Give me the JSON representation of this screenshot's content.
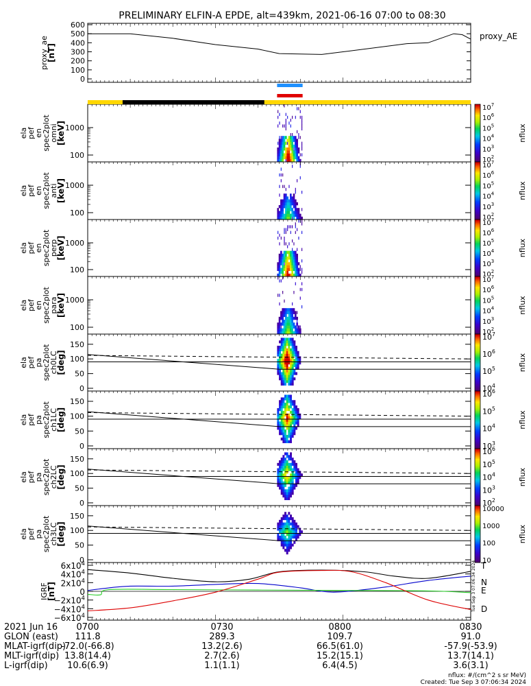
{
  "title": "PRELIMINARY ELFIN-A EPDE, alt=439km, 2021-06-16 07:00 to 08:30",
  "time_axis": {
    "ticks": [
      "0700",
      "0730",
      "0800",
      "0830"
    ],
    "tick_values_min": [
      0,
      30,
      60,
      90
    ]
  },
  "colors": {
    "frame": "#000000",
    "sunlight": "#FFD700",
    "shadow": "#000000",
    "science_bar_blue": "#1E90FF",
    "science_bar_red": "#E00000",
    "igrf_T": "#000000",
    "igrf_N": "#0000CC",
    "igrf_E": "#22CC22",
    "igrf_D": "#DD0000"
  },
  "panels": [
    {
      "ylabel": [
        "proxy_ae",
        "[nT]"
      ],
      "right_label": "proxy_AE"
    },
    {
      "ylabel": [
        "ela",
        "pef",
        "en",
        "spec2plot",
        "omni",
        "[keV]"
      ],
      "cbar_label": "nflux"
    },
    {
      "ylabel": [
        "ela",
        "pef",
        "en",
        "spec2plot",
        "anti",
        "[keV]"
      ],
      "cbar_label": "nflux"
    },
    {
      "ylabel": [
        "ela",
        "pef",
        "en",
        "spec2plot",
        "perp",
        "[keV]"
      ],
      "cbar_label": "nflux"
    },
    {
      "ylabel": [
        "ela",
        "pef",
        "en",
        "spec2plot",
        "para",
        "[keV]"
      ],
      "cbar_label": "nflux"
    },
    {
      "ylabel": [
        "ela",
        "pef",
        "pa",
        "spec2plot",
        "ch0LC",
        "[deg]"
      ],
      "cbar_label": "nflux"
    },
    {
      "ylabel": [
        "ela",
        "pef",
        "pa",
        "spec2plot",
        "ch1LC",
        "[deg]"
      ],
      "cbar_label": "nflux"
    },
    {
      "ylabel": [
        "ela",
        "pef",
        "pa",
        "spec2plot",
        "ch2LC",
        "[deg]"
      ],
      "cbar_label": "nflux"
    },
    {
      "ylabel": [
        "ela",
        "pef",
        "pa",
        "spec2plot",
        "ch3LC",
        "[deg]"
      ],
      "cbar_label": "nflux"
    },
    {
      "ylabel": [
        "IGRF",
        "[nT]"
      ]
    }
  ],
  "igrf_legend": [
    "T",
    "N",
    "E",
    "D"
  ],
  "orbit_table": {
    "date": "2021 Jun 16",
    "rows": [
      {
        "label": "GLON (east)",
        "values": [
          "111.8",
          "289.3",
          "109.7",
          "91.0"
        ]
      },
      {
        "label": "MLAT-igrf(dip)",
        "values": [
          "-72.0(-66.8)",
          "13.2(2.6)",
          "66.5(61.0)",
          "-57.9(-53.9)"
        ]
      },
      {
        "label": "MLT-igrf(dip)",
        "values": [
          "13.8(14.4)",
          "2.7(2.6)",
          "15.2(15.1)",
          "13.7(14.1)"
        ]
      },
      {
        "label": "L-igrf(dip)",
        "values": [
          "10.6(6.9)",
          "1.1(1.1)",
          "6.4(4.5)",
          "3.6(3.1)"
        ]
      }
    ]
  },
  "footer": {
    "units": "nflux: #/(cm^2 s sr MeV)",
    "created": "Created: Tue Sep  3 07:06:34 2024",
    "side_stamp": "Tue Sep  3 07:06:34 2024"
  },
  "chart_data": [
    {
      "type": "line",
      "name": "proxy_AE",
      "x_minutes": [
        0,
        10,
        20,
        30,
        40,
        45,
        50,
        55,
        60,
        70,
        75,
        80,
        86,
        88,
        90
      ],
      "y": [
        500,
        500,
        450,
        380,
        330,
        280,
        275,
        270,
        300,
        360,
        390,
        400,
        500,
        490,
        440
      ],
      "ylim": [
        0,
        600
      ],
      "yticks": [
        0,
        100,
        200,
        300,
        400,
        500,
        600
      ]
    },
    {
      "type": "heatmap",
      "panels": [
        "omni",
        "anti",
        "perp",
        "para"
      ],
      "yscale": "log",
      "yticks_keV": [
        100,
        1000
      ],
      "active_time_range_min": [
        44.5,
        50.5
      ],
      "colorbar": {
        "scale": "log",
        "min_exp": 2,
        "max_exp": 7,
        "ticks": [
          "10^2",
          "10^3",
          "10^4",
          "10^5",
          "10^6",
          "10^7"
        ]
      }
    },
    {
      "type": "heatmap",
      "panels": [
        "ch0LC",
        "ch1LC",
        "ch2LC",
        "ch3LC"
      ],
      "ylim_deg": [
        0,
        180
      ],
      "yticks_deg": [
        0,
        50,
        100,
        150
      ],
      "active_time_range_min": [
        44.5,
        50.5
      ],
      "loss_cone_deg": {
        "solid_start": 115,
        "solid_end": 65,
        "dashed_start": 112,
        "dashed_end": 100,
        "reference": 90
      },
      "colorbars": [
        {
          "min_exp": 4,
          "max_exp": 7,
          "ticks": [
            "10^4",
            "10^5",
            "10^6",
            "10^7"
          ]
        },
        {
          "min_exp": 3,
          "max_exp": 6,
          "ticks": [
            "10^3",
            "10^4",
            "10^5",
            "10^6"
          ]
        },
        {
          "min_exp": 2,
          "max_exp": 6,
          "ticks": [
            "10^2",
            "10^3",
            "10^4",
            "10^5",
            "10^6"
          ]
        },
        {
          "min_exp": 1,
          "max_exp": 4,
          "ticks": [
            "10",
            "100",
            "1000",
            "10000"
          ]
        }
      ]
    },
    {
      "type": "line",
      "name": "IGRF",
      "ylim": [
        -60000,
        60000
      ],
      "yticks": [
        "-6x10^4",
        "-4x10^4",
        "-2x10^4",
        "0",
        "2x10^4",
        "4x10^4",
        "6x10^4"
      ],
      "series": [
        {
          "name": "T",
          "x_minutes": [
            0,
            10,
            20,
            30,
            38,
            45,
            55,
            65,
            72,
            80,
            90
          ],
          "y": [
            50000,
            42000,
            30000,
            22000,
            28000,
            45000,
            49000,
            45000,
            35000,
            30000,
            46000
          ]
        },
        {
          "name": "N",
          "x_minutes": [
            0,
            5,
            10,
            20,
            30,
            40,
            50,
            55,
            60,
            70,
            80,
            90
          ],
          "y": [
            2000,
            8000,
            12000,
            12000,
            16000,
            18000,
            8000,
            0,
            -1000,
            10000,
            25000,
            35000
          ]
        },
        {
          "name": "E",
          "x_minutes": [
            0,
            3,
            5,
            20,
            40,
            60,
            80,
            90
          ],
          "y": [
            -7000,
            -8000,
            4000,
            4000,
            3000,
            2000,
            1000,
            -3000
          ]
        },
        {
          "name": "D",
          "x_minutes": [
            0,
            10,
            20,
            30,
            40,
            45,
            55,
            62,
            70,
            80,
            90
          ],
          "y": [
            -45000,
            -38000,
            -22000,
            -2000,
            28000,
            44000,
            48000,
            45000,
            20000,
            -20000,
            -42000
          ]
        }
      ]
    }
  ]
}
